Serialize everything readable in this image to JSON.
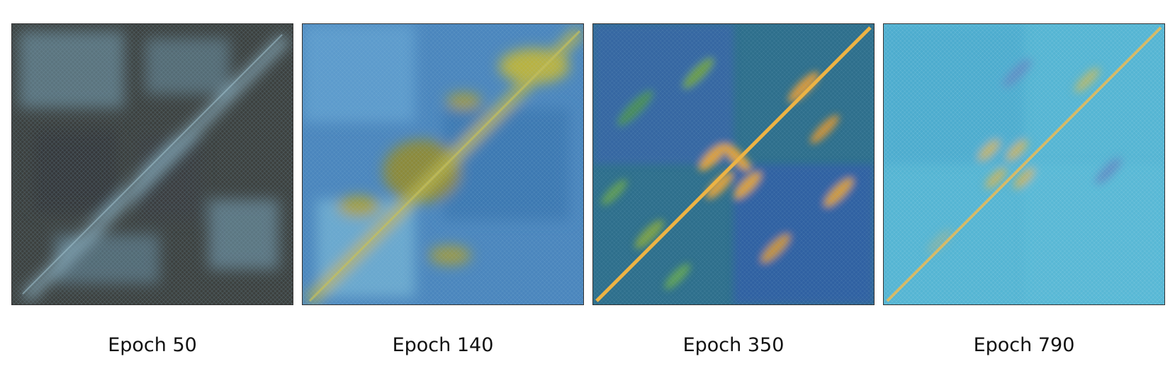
{
  "panels": [
    {
      "caption": "Epoch 50",
      "base": "#3b3f3d",
      "tint": "#6e8c99",
      "accent": "#8fb7c6"
    },
    {
      "caption": "Epoch 140",
      "base": "#3f7cb4",
      "tint": "#5aa6cf",
      "accent": "#b9b43c"
    },
    {
      "caption": "Epoch 350",
      "base": "#2f6a8a",
      "tint": "#3a5fb8",
      "accent": "#e5a437"
    },
    {
      "caption": "Epoch 790",
      "base": "#4fb2d2",
      "tint": "#6ec6dc",
      "accent": "#d7b955"
    }
  ]
}
